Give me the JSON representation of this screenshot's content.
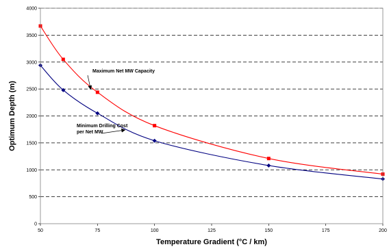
{
  "chart_data": {
    "type": "line",
    "title": "",
    "xlabel": "Temperature Gradient (°C / km)",
    "ylabel": "Optimum Depth (m)",
    "xlim": [
      50,
      200
    ],
    "ylim": [
      0,
      4000
    ],
    "x_ticks": [
      "50",
      "75",
      "100",
      "125",
      "150",
      "175",
      "200"
    ],
    "y_ticks": [
      "0",
      "500",
      "1000",
      "1500",
      "2000",
      "2500",
      "3000",
      "3500",
      "4000"
    ],
    "grid": "horizontal dashed",
    "legend": "none",
    "series": [
      {
        "color": "#ff0000",
        "marker": "square",
        "x": [
          50,
          60,
          75,
          100,
          150,
          200
        ],
        "y": [
          3670,
          3050,
          2440,
          1820,
          1210,
          920
        ]
      },
      {
        "color": "#000080",
        "marker": "diamond",
        "x": [
          50,
          60,
          75,
          100,
          150,
          200
        ],
        "y": [
          2940,
          2480,
          2050,
          1540,
          1080,
          830
        ]
      }
    ],
    "annotations": [
      {
        "lines": [
          "Maximum Net MW Capacity"
        ],
        "points_to": {
          "x": 72,
          "y": 2500
        }
      },
      {
        "lines": [
          "Minimum Drilling Cost",
          "per Net MW"
        ],
        "points_to": {
          "x": 87,
          "y": 1740
        }
      }
    ]
  }
}
